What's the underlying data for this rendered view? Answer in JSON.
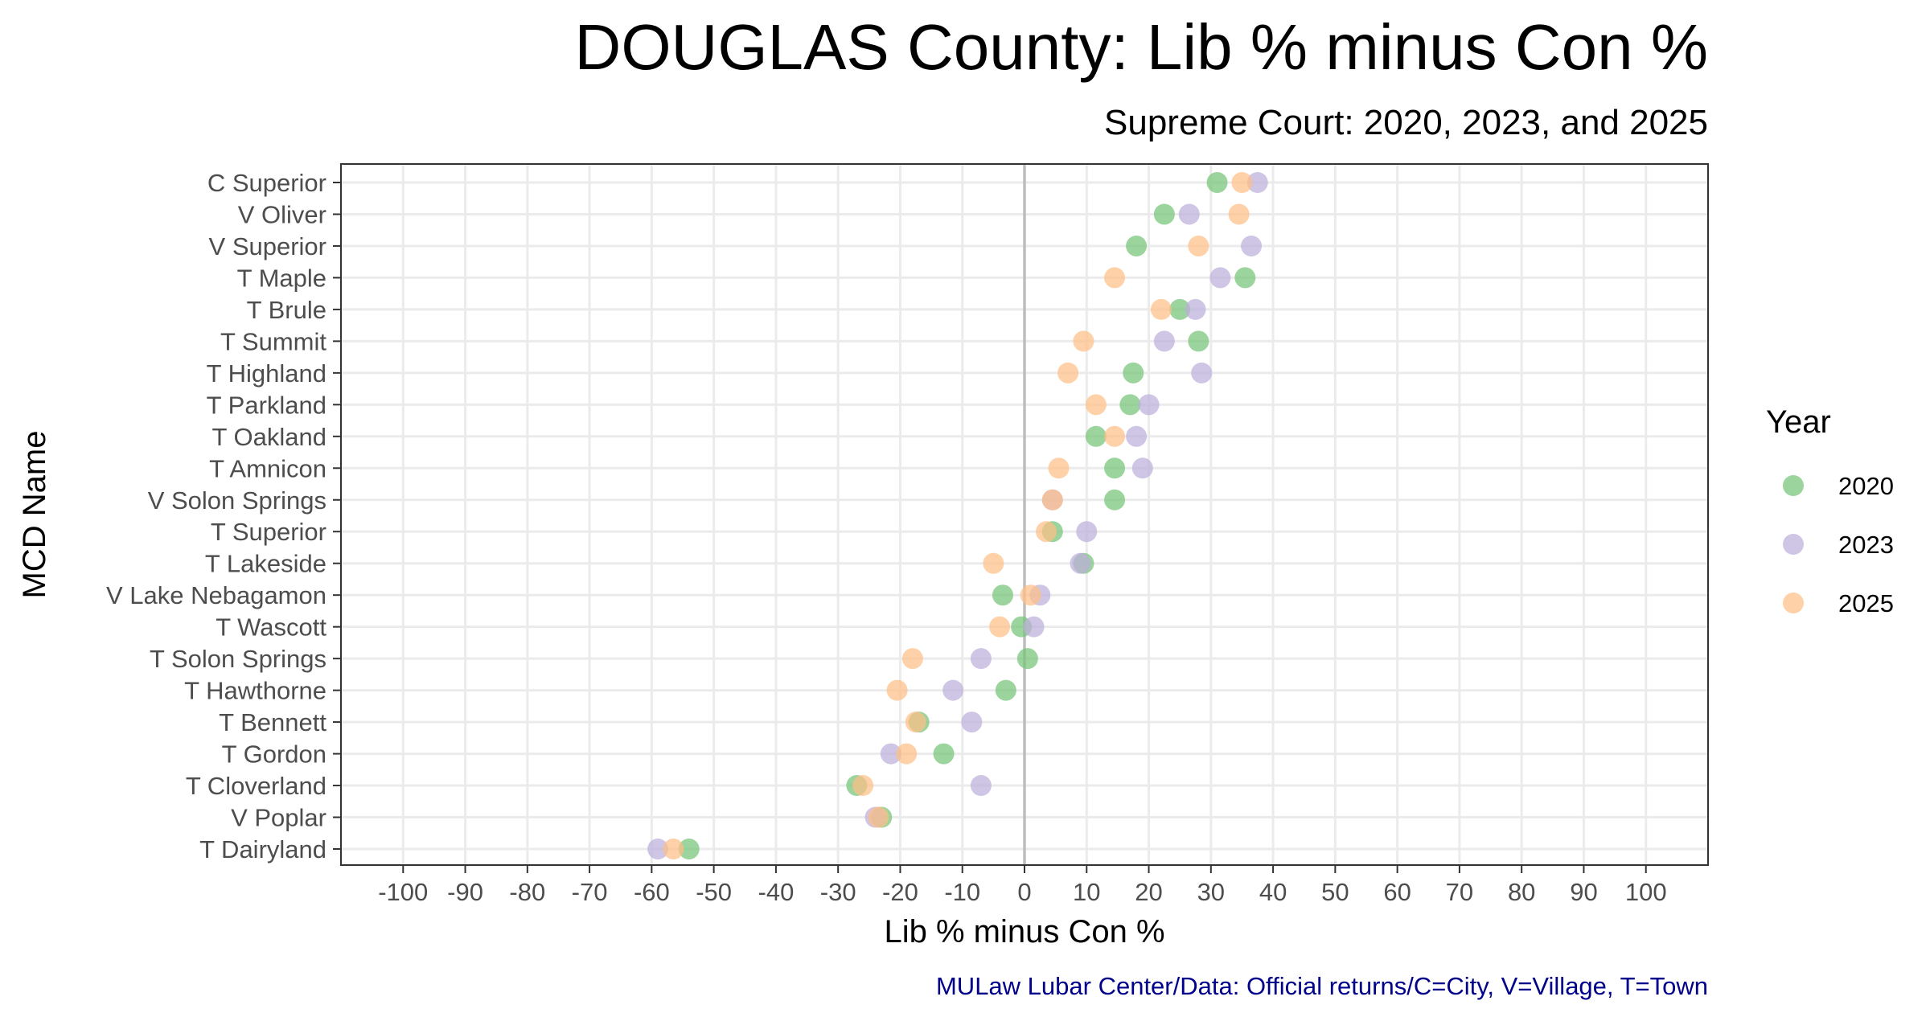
{
  "chart_data": {
    "type": "scatter",
    "title": "DOUGLAS County: Lib % minus Con %",
    "subtitle": "Supreme Court: 2020, 2023, and 2025",
    "xlabel": "Lib % minus Con %",
    "ylabel": "MCD Name",
    "caption": "MULaw Lubar Center/Data: Official returns/C=City, V=Village, T=Town",
    "xlim": [
      -110,
      110
    ],
    "xticks": [
      -100,
      -90,
      -80,
      -70,
      -60,
      -50,
      -40,
      -30,
      -20,
      -10,
      0,
      10,
      20,
      30,
      40,
      50,
      60,
      70,
      80,
      90,
      100
    ],
    "zero_line": 0,
    "grid": true,
    "legend": {
      "title": "Year",
      "position": "right"
    },
    "categories": [
      "C Superior",
      "V Oliver",
      "V Superior",
      "T Maple",
      "T Brule",
      "T Summit",
      "T Highland",
      "T Parkland",
      "T Oakland",
      "T Amnicon",
      "V Solon Springs",
      "T Superior",
      "T Lakeside",
      "V Lake Nebagamon",
      "T Wascott",
      "T Solon Springs",
      "T Hawthorne",
      "T Bennett",
      "T Gordon",
      "T Cloverland",
      "V Poplar",
      "T Dairyland"
    ],
    "series": [
      {
        "name": "2020",
        "color": "#74c476",
        "values": [
          31,
          22.5,
          18,
          35.5,
          25,
          28,
          17.5,
          17,
          11.5,
          14.5,
          14.5,
          4.5,
          9.5,
          -3.5,
          -0.5,
          0.5,
          -3,
          -17,
          -13,
          -27,
          -23,
          -54
        ]
      },
      {
        "name": "2023",
        "color": "#bcaedb",
        "values": [
          37.5,
          26.5,
          36.5,
          31.5,
          27.5,
          22.5,
          28.5,
          20,
          18,
          19,
          4.5,
          10,
          9,
          2.5,
          1.5,
          -7,
          -11.5,
          -8.5,
          -21.5,
          -7,
          -24,
          -59
        ]
      },
      {
        "name": "2025",
        "color": "#fdbf86",
        "values": [
          35,
          34.5,
          28,
          14.5,
          22,
          9.5,
          7,
          11.5,
          14.5,
          5.5,
          4.5,
          3.5,
          -5,
          1,
          -4,
          -18,
          -20.5,
          -17.5,
          -19,
          -26,
          -23.5,
          -56.5
        ]
      }
    ]
  }
}
